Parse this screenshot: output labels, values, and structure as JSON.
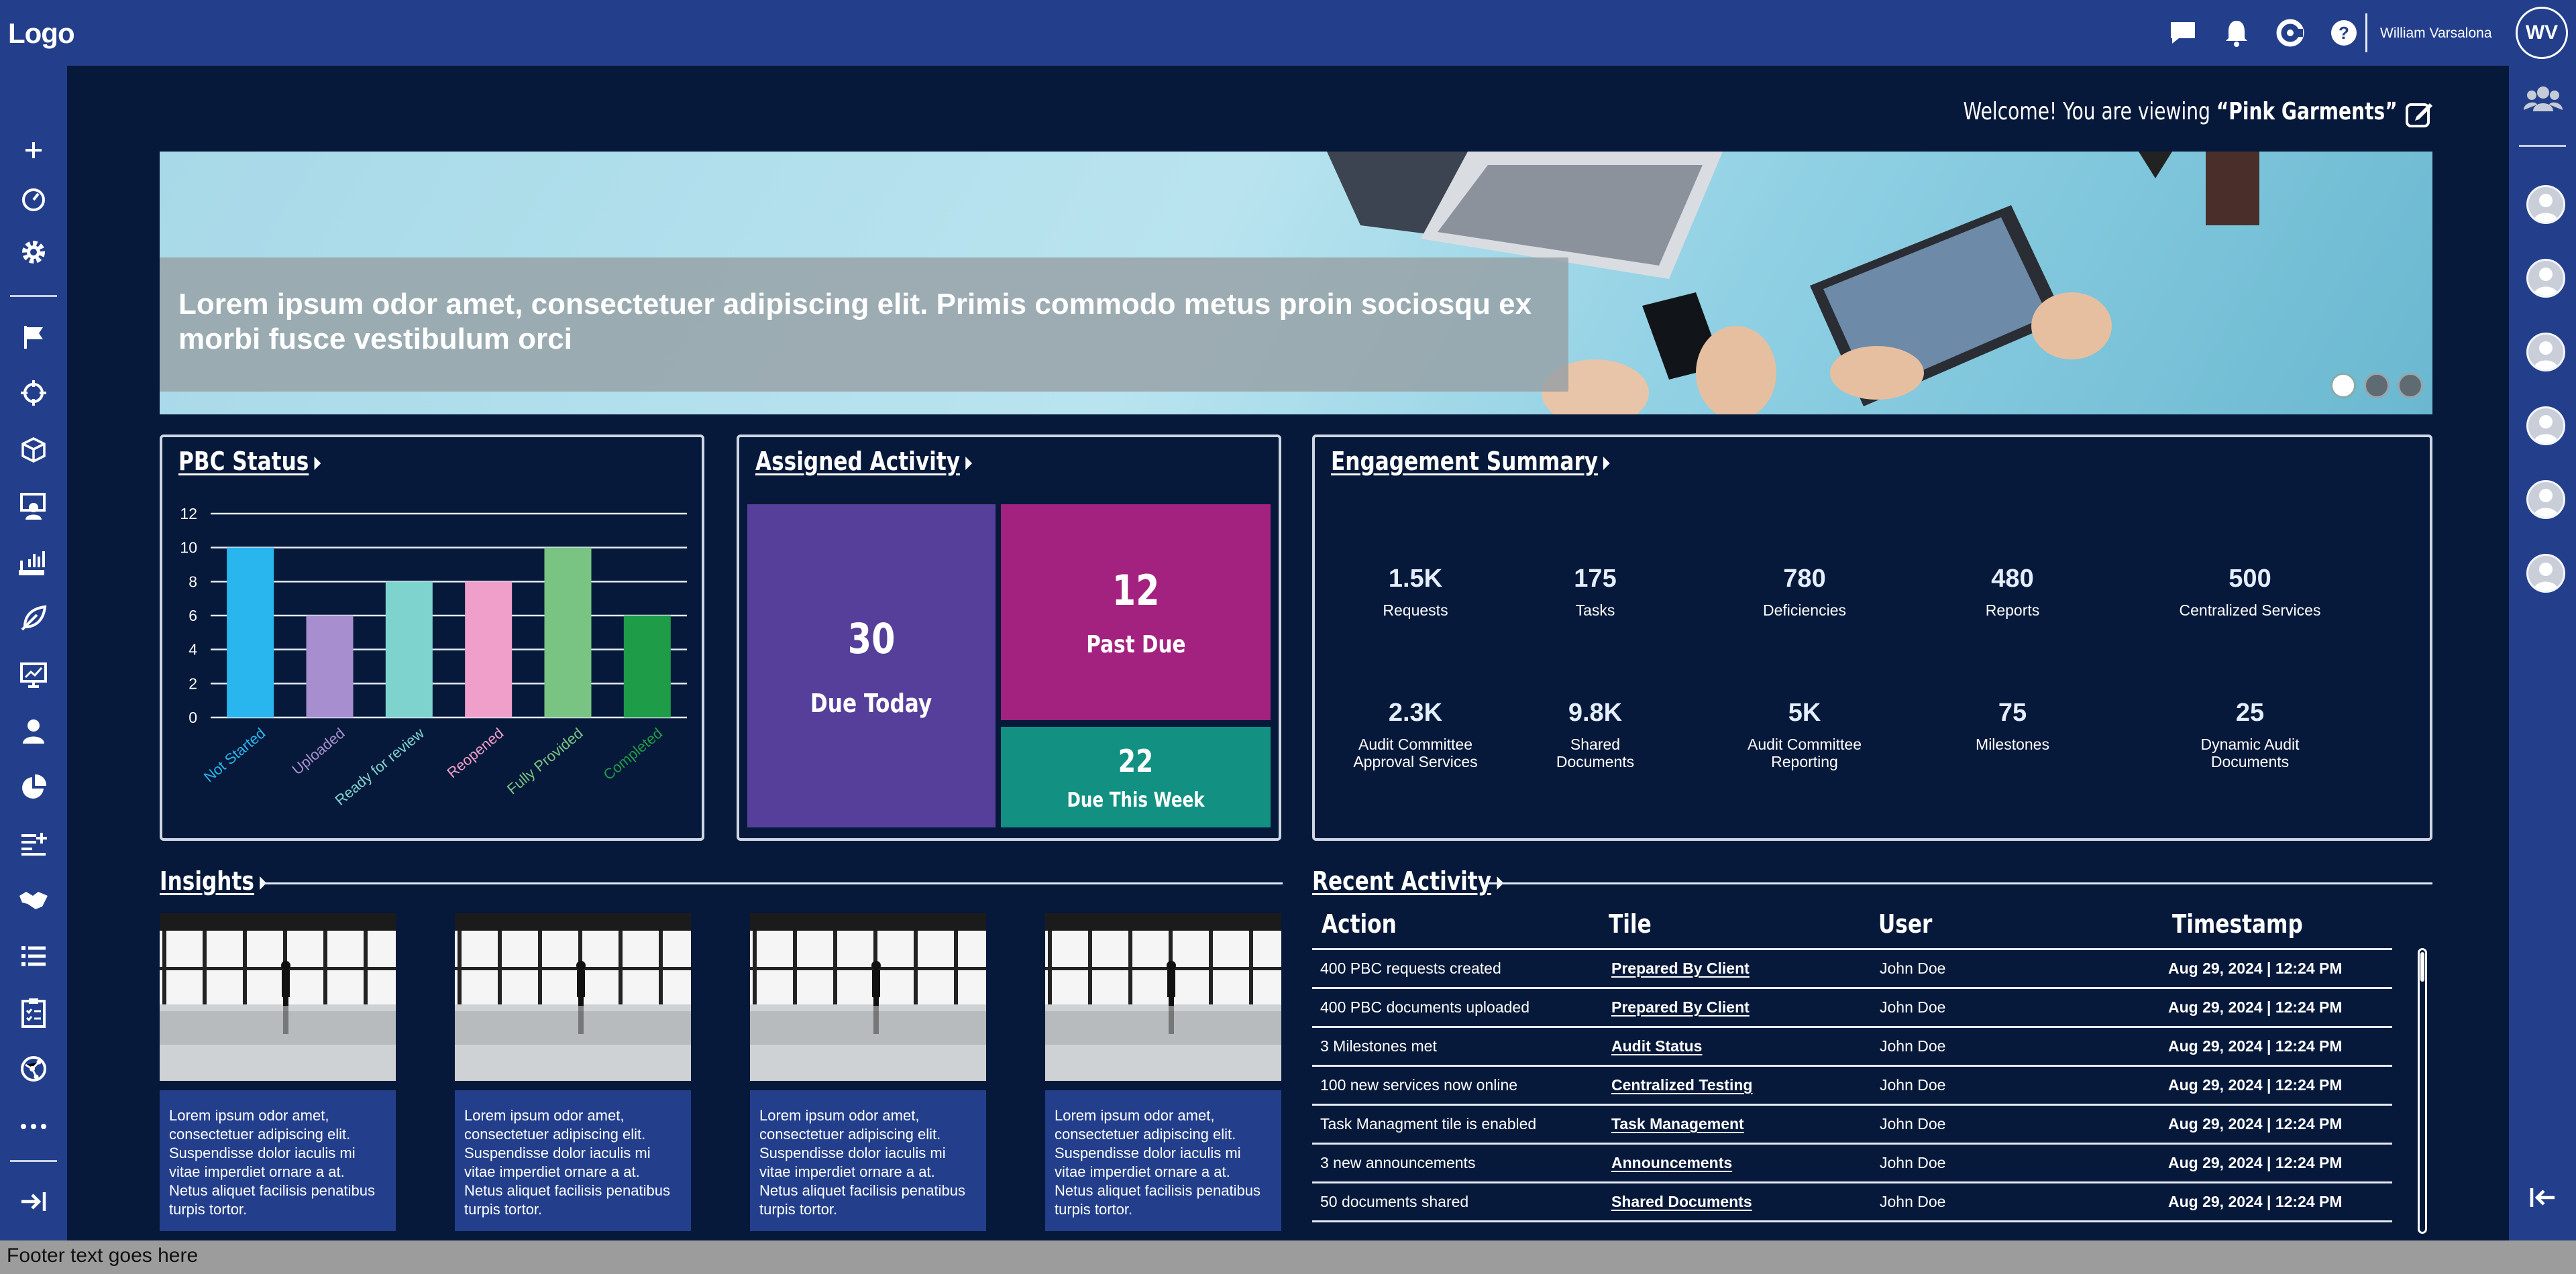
{
  "header": {
    "logo": "Logo",
    "icons": [
      "chat-icon",
      "bell-icon",
      "brand-c-icon",
      "help-icon"
    ],
    "user_name": "William Varsalona",
    "user_initials": "WV"
  },
  "left_sidebar": {
    "items": [
      "plus-icon",
      "dashboard-gauge-icon",
      "settings-gear-icon",
      "flag-icon",
      "crosshair-icon",
      "cube-icon",
      "user-monitor-icon",
      "chart-hand-icon",
      "leaf-icon",
      "presentation-chart-icon",
      "user-icon",
      "pie-chart-icon",
      "add-list-icon",
      "handshake-icon",
      "list-icon",
      "clipboard-checklist-icon",
      "globe-network-icon",
      "more-dots-icon"
    ],
    "collapse_icon": "collapse-right-icon"
  },
  "right_sidebar": {
    "group_icon": "users-group-icon",
    "avatar_count": 6,
    "collapse_icon": "collapse-left-icon"
  },
  "welcome": {
    "prefix": "Welcome! You are viewing ",
    "client": "“Pink Garments”"
  },
  "banner": {
    "text": "Lorem ipsum odor amet, consectetuer adipiscing elit. Primis commodo metus proin sociosqu ex morbi fusce vestibulum orci",
    "active_slide": 1,
    "slide_count": 3
  },
  "pbc_status": {
    "title": "PBC Status"
  },
  "chart_data": {
    "type": "bar",
    "title": "PBC Status",
    "categories": [
      "Not Started",
      "Uploaded",
      "Ready for review",
      "Reopened",
      "Fully Provided",
      "Completed"
    ],
    "values": [
      10,
      6,
      8,
      8,
      10,
      6
    ],
    "colors": [
      "#29b6ee",
      "#a78fcf",
      "#7fd3cf",
      "#ef9fca",
      "#79c383",
      "#1e9c47"
    ],
    "yticks": [
      0,
      2,
      4,
      6,
      8,
      10,
      12
    ],
    "ylim": [
      0,
      12
    ],
    "grid": true
  },
  "assigned_activity": {
    "title": "Assigned Activity",
    "due_today": {
      "value": "30",
      "label": "Due Today",
      "color": "#553f9a"
    },
    "past_due": {
      "value": "12",
      "label": "Past Due",
      "color": "#a3227f"
    },
    "due_this_week": {
      "value": "22",
      "label": "Due This Week",
      "color": "#129082"
    }
  },
  "engagement_summary": {
    "title": "Engagement Summary",
    "stats": [
      {
        "value": "1.5K",
        "label": "Requests"
      },
      {
        "value": "175",
        "label": "Tasks"
      },
      {
        "value": "780",
        "label": "Deficiencies"
      },
      {
        "value": "480",
        "label": "Reports"
      },
      {
        "value": "500",
        "label": "Centralized Services"
      },
      {
        "value": "2.3K",
        "label": "Audit Committee Approval Services"
      },
      {
        "value": "9.8K",
        "label": "Shared Documents"
      },
      {
        "value": "5K",
        "label": "Audit Committee Reporting"
      },
      {
        "value": "75",
        "label": "Milestones"
      },
      {
        "value": "25",
        "label": "Dynamic Audit Documents"
      }
    ]
  },
  "insights": {
    "title": "Insights",
    "cards": [
      {
        "text": "Lorem ipsum odor amet, consectetuer adipiscing elit. Suspendisse dolor iaculis mi vitae imperdiet ornare a at. Netus aliquet facilisis penatibus turpis tortor."
      },
      {
        "text": "Lorem ipsum odor amet, consectetuer adipiscing elit. Suspendisse dolor iaculis mi vitae imperdiet ornare a at. Netus aliquet facilisis penatibus turpis tortor."
      },
      {
        "text": "Lorem ipsum odor amet, consectetuer adipiscing elit. Suspendisse dolor iaculis mi vitae imperdiet ornare a at. Netus aliquet facilisis penatibus turpis tortor."
      },
      {
        "text": "Lorem ipsum odor amet, consectetuer adipiscing elit. Suspendisse dolor iaculis mi vitae imperdiet ornare a at. Netus aliquet facilisis penatibus turpis tortor."
      }
    ]
  },
  "recent_activity": {
    "title": "Recent Activity",
    "columns": [
      "Action",
      "Tile",
      "User",
      "Timestamp"
    ],
    "rows": [
      {
        "action": "400 PBC requests created",
        "tile": "Prepared By Client",
        "user": "John Doe",
        "timestamp": "Aug 29, 2024 | 12:24 PM"
      },
      {
        "action": "400 PBC documents uploaded",
        "tile": "Prepared By Client",
        "user": "John Doe",
        "timestamp": "Aug 29, 2024 | 12:24 PM"
      },
      {
        "action": "3 Milestones met",
        "tile": "Audit Status",
        "user": "John Doe",
        "timestamp": "Aug 29, 2024 | 12:24 PM"
      },
      {
        "action": "100 new services now online",
        "tile": "Centralized Testing",
        "user": "John Doe",
        "timestamp": "Aug 29, 2024 | 12:24 PM"
      },
      {
        "action": "Task Managment tile is enabled",
        "tile": "Task Management",
        "user": "John Doe",
        "timestamp": "Aug 29, 2024 | 12:24 PM"
      },
      {
        "action": "3 new announcements",
        "tile": "Announcements",
        "user": "John Doe",
        "timestamp": "Aug 29, 2024 | 12:24 PM"
      },
      {
        "action": "50 documents shared",
        "tile": "Shared Documents",
        "user": "John Doe",
        "timestamp": "Aug 29, 2024 | 12:24 PM"
      }
    ]
  },
  "footer": {
    "text": "Footer text goes here"
  }
}
